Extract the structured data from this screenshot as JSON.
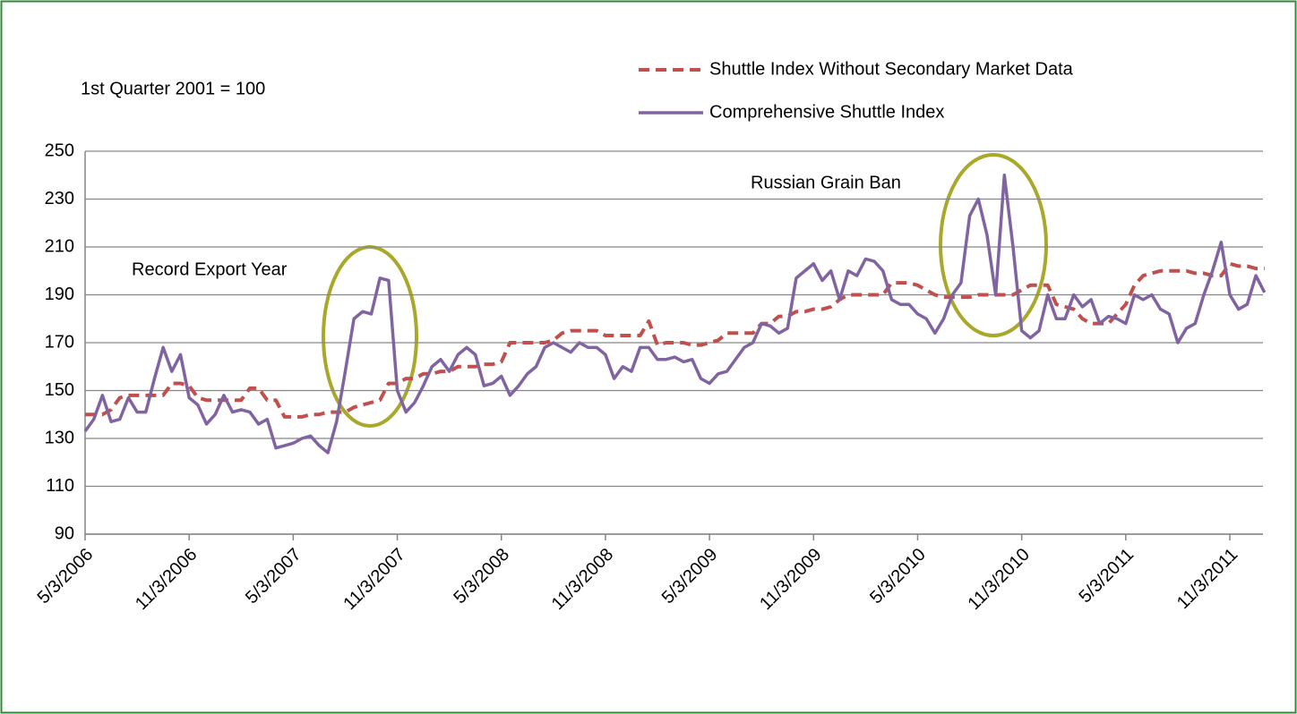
{
  "chart_data": {
    "type": "line",
    "annotations": [
      "1st Quarter 2001 = 100",
      "Record Export Year",
      "Russian Grain Ban"
    ],
    "categories": [
      "5/3/2006",
      null,
      null,
      null,
      null,
      null,
      null,
      null,
      null,
      null,
      null,
      null,
      "11/3/2006",
      null,
      null,
      null,
      null,
      null,
      null,
      null,
      null,
      null,
      null,
      null,
      "5/3/2007",
      null,
      null,
      null,
      null,
      null,
      null,
      null,
      null,
      null,
      null,
      null,
      "11/3/2007",
      null,
      null,
      null,
      null,
      null,
      null,
      null,
      null,
      null,
      null,
      null,
      "5/3/2008",
      null,
      null,
      null,
      null,
      null,
      null,
      null,
      null,
      null,
      null,
      null,
      "11/3/2008",
      null,
      null,
      null,
      null,
      null,
      null,
      null,
      null,
      null,
      null,
      null,
      "5/3/2009",
      null,
      null,
      null,
      null,
      null,
      null,
      null,
      null,
      null,
      null,
      null,
      "11/3/2009",
      null,
      null,
      null,
      null,
      null,
      null,
      null,
      null,
      null,
      null,
      null,
      "5/3/2010",
      null,
      null,
      null,
      null,
      null,
      null,
      null,
      null,
      null,
      null,
      null,
      "11/3/2010",
      null,
      null,
      null,
      null,
      null,
      null,
      null,
      null,
      null,
      null,
      null,
      "5/3/2011",
      null,
      null,
      null,
      null,
      null,
      null,
      null,
      null,
      null,
      null,
      null,
      "11/3/2011",
      null,
      null,
      null,
      null
    ],
    "series": [
      {
        "name": "Shuttle Index Without Secondary Market Data",
        "color": "#c0504d",
        "dashed": true,
        "values": [
          140,
          140,
          140,
          142,
          147,
          148,
          148,
          148,
          148,
          148,
          153,
          153,
          152,
          147,
          146,
          146,
          146,
          146,
          146,
          151,
          151,
          146,
          146,
          139,
          139,
          139,
          140,
          140,
          141,
          141,
          141,
          143,
          144,
          145,
          146,
          153,
          153,
          155,
          155,
          157,
          157,
          158,
          158,
          160,
          160,
          160,
          161,
          161,
          162,
          170,
          170,
          170,
          170,
          170,
          171,
          174,
          175,
          175,
          175,
          175,
          173,
          173,
          173,
          173,
          173,
          179,
          169,
          170,
          170,
          170,
          169,
          169,
          170,
          171,
          174,
          174,
          174,
          174,
          178,
          178,
          181,
          181,
          183,
          183,
          184,
          184,
          185,
          188,
          190,
          190,
          190,
          190,
          190,
          195,
          195,
          195,
          194,
          192,
          190,
          189,
          189,
          189,
          189,
          190,
          190,
          190,
          190,
          190,
          192,
          194,
          194,
          194,
          186,
          185,
          184,
          180,
          178,
          178,
          178,
          182,
          186,
          194,
          198,
          199,
          200,
          200,
          200,
          200,
          199,
          199,
          198,
          198,
          203,
          202,
          202,
          201,
          201
        ]
      },
      {
        "name": "Comprehensive Shuttle Index",
        "color": "#8064a2",
        "dashed": false,
        "values": [
          133,
          138,
          148,
          137,
          138,
          147,
          141,
          141,
          155,
          168,
          158,
          165,
          147,
          144,
          136,
          140,
          148,
          141,
          142,
          141,
          136,
          138,
          126,
          127,
          128,
          130,
          131,
          127,
          124,
          137,
          158,
          180,
          183,
          182,
          197,
          196,
          150,
          141,
          145,
          152,
          160,
          163,
          158,
          165,
          168,
          165,
          152,
          153,
          156,
          148,
          152,
          157,
          160,
          168,
          170,
          168,
          166,
          170,
          168,
          168,
          165,
          155,
          160,
          158,
          168,
          168,
          163,
          163,
          164,
          162,
          163,
          155,
          153,
          157,
          158,
          163,
          168,
          170,
          178,
          177,
          174,
          176,
          197,
          200,
          203,
          196,
          200,
          188,
          200,
          198,
          205,
          204,
          200,
          188,
          186,
          186,
          182,
          180,
          174,
          180,
          190,
          195,
          223,
          230,
          215,
          190,
          240,
          210,
          175,
          172,
          175,
          190,
          180,
          180,
          190,
          185,
          188,
          178,
          181,
          180,
          178,
          190,
          188,
          190,
          184,
          182,
          170,
          176,
          178,
          190,
          200,
          212,
          190,
          184,
          186,
          198,
          191
        ]
      }
    ],
    "ylim": [
      90,
      250
    ],
    "yticks": [
      90,
      110,
      130,
      150,
      170,
      190,
      210,
      230,
      250
    ],
    "grid": true
  }
}
